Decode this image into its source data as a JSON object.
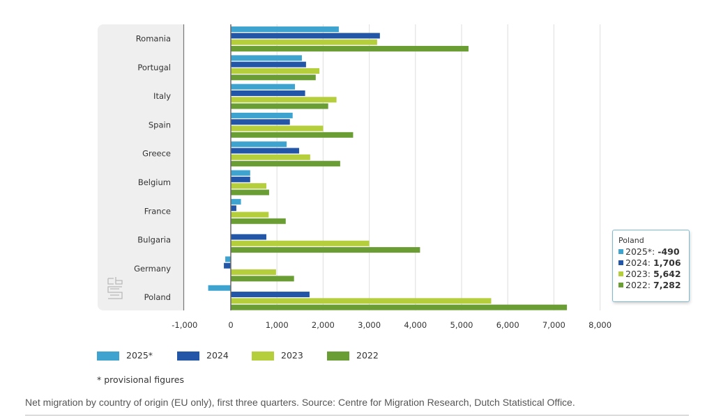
{
  "chart_data": {
    "type": "bar",
    "orientation": "horizontal",
    "title": "",
    "xlabel": "",
    "ylabel": "",
    "xlim": [
      -1000,
      8000
    ],
    "x_ticks": [
      -1000,
      0,
      1000,
      2000,
      3000,
      4000,
      5000,
      6000,
      7000,
      8000
    ],
    "x_tick_labels": [
      "-1,000",
      "0",
      "1,000",
      "2,000",
      "3,000",
      "4,000",
      "5,000",
      "6,000",
      "7,000",
      "8,000"
    ],
    "grid": true,
    "legend_position": "bottom-left",
    "categories": [
      "Romania",
      "Portugal",
      "Italy",
      "Spain",
      "Greece",
      "Belgium",
      "France",
      "Bulgaria",
      "Germany",
      "Poland"
    ],
    "series": [
      {
        "name": "2025*",
        "color": "#3fa3d0",
        "values": [
          2340,
          1540,
          1390,
          1340,
          1210,
          420,
          220,
          0,
          -120,
          -490
        ]
      },
      {
        "name": "2024",
        "color": "#2456a8",
        "values": [
          3230,
          1630,
          1610,
          1280,
          1480,
          420,
          120,
          770,
          -150,
          1706
        ]
      },
      {
        "name": "2023",
        "color": "#b5ce3c",
        "values": [
          3170,
          1920,
          2290,
          2000,
          1720,
          770,
          820,
          3000,
          980,
          5642
        ]
      },
      {
        "name": "2022",
        "color": "#6a9e35",
        "values": [
          5150,
          1840,
          2110,
          2650,
          2370,
          830,
          1190,
          4100,
          1370,
          7282
        ]
      }
    ]
  },
  "tooltip": {
    "title": "Poland",
    "rows": [
      {
        "label": "2025*: ",
        "value": "-490",
        "color": "#3fa3d0"
      },
      {
        "label": "2024: ",
        "value": "1,706",
        "color": "#2456a8"
      },
      {
        "label": "2023: ",
        "value": "5,642",
        "color": "#b5ce3c"
      },
      {
        "label": "2022: ",
        "value": "7,282",
        "color": "#6a9e35"
      }
    ]
  },
  "legend": [
    {
      "label": "2025*",
      "color": "#3fa3d0"
    },
    {
      "label": "2024",
      "color": "#2456a8"
    },
    {
      "label": "2023",
      "color": "#b5ce3c"
    },
    {
      "label": "2022",
      "color": "#6a9e35"
    }
  ],
  "note": "* provisional figures",
  "logo": "cbs",
  "caption": "Net migration by country of origin (EU only), first three quarters. Source: Centre for Migration Research, Dutch Statistical Office."
}
